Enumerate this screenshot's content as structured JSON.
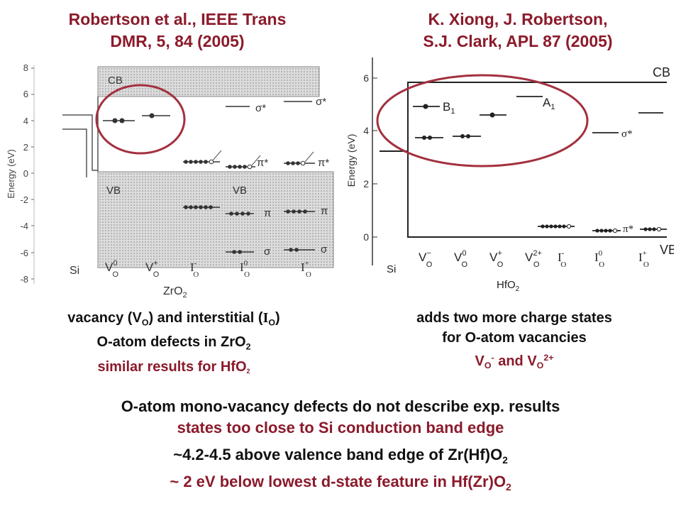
{
  "left_citation": {
    "line1": "Robertson et al., IEEE Trans",
    "line2": "DMR, 5, 84 (2005)"
  },
  "right_citation": {
    "line1": "K. Xiong, J. Robertson,",
    "line2": "S.J. Clark, APL 87 (2005)"
  },
  "left_chart": {
    "ylabel": "Energy (eV)",
    "yticks": [
      "8",
      "6",
      "4",
      "2",
      "0",
      "-2",
      "-4",
      "-6",
      "-8"
    ],
    "band_labels": {
      "cb": "CB",
      "vb": "VB",
      "vb2": "VB"
    },
    "si_label": "Si",
    "xlabel": "ZrO",
    "xlabel_sub": "2",
    "v_letter": "V",
    "i_letter": "I",
    "o_sub": "O",
    "charges": [
      "0",
      "+",
      "-",
      "0",
      "+"
    ],
    "orbitals": {
      "sigma_star": "σ*",
      "pi_star": "π*",
      "pi": "π",
      "sigma": "σ"
    }
  },
  "right_chart": {
    "ylabel": "Energy (eV)",
    "yticks": [
      "6",
      "4",
      "2",
      "0"
    ],
    "band_labels": {
      "cb": "CB",
      "vb": "VB"
    },
    "si_label": "Si",
    "xlabel": "HfO",
    "xlabel_sub": "2",
    "v_letter": "V",
    "i_letter": "I",
    "o_sub": "O",
    "charges": [
      "−",
      "0",
      "+",
      "2+",
      "-",
      "0",
      "+"
    ],
    "state_labels": {
      "b1": "B",
      "b1_sub": "1",
      "a1": "A",
      "a1_sub": "1"
    },
    "orbitals": {
      "sigma_star": "σ*",
      "pi_star": "π*"
    }
  },
  "left_caption": {
    "line1_a": "vacancy (V",
    "line1_sub": "O",
    "line1_b": ") and interstitial (",
    "line1_i": "I",
    "line1_sub2": "O",
    "line1_c": ")",
    "line2_a": "O-atom defects in ZrO",
    "line2_sub": "2",
    "line3_a": "similar results for HfO",
    "line3_sub": "2"
  },
  "right_caption": {
    "line1": "adds two more charge states",
    "line2": "for O-atom vacancies",
    "line3_a": "V",
    "line3_sub1": "O",
    "line3_sup1": "-",
    "line3_b": " and V",
    "line3_sub2": "O",
    "line3_sup2": "2+"
  },
  "bottom": {
    "line1": "O-atom mono-vacancy defects do not describe exp. results",
    "line2": "states too close to Si conduction band edge",
    "line3_a": "~4.2-4.5 above valence band edge of Zr(Hf)O",
    "line3_sub": "2",
    "line4_a": "~ 2 eV below lowest d-state feature in Hf(Zr)O",
    "line4_sub": "2"
  },
  "colors": {
    "accent": "#8b1a2b",
    "text": "#111111",
    "band_fill": "#cfcfcf"
  }
}
